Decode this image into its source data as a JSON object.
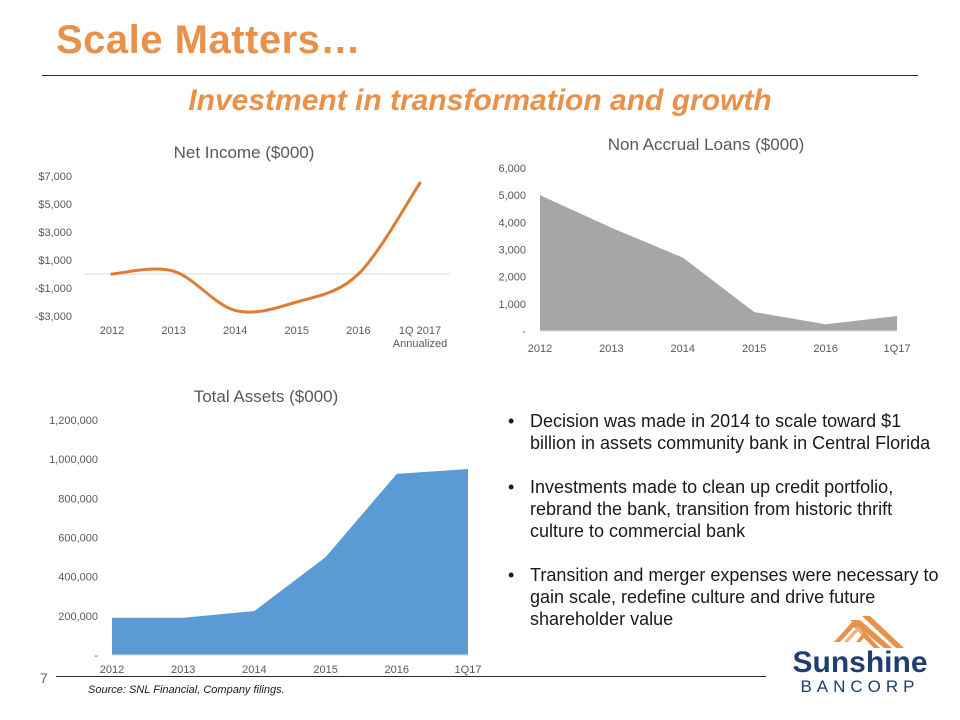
{
  "slide": {
    "title": "Scale Matters…",
    "subtitle": "Investment in transformation and growth",
    "page_number": "7",
    "source": "Source: SNL Financial, Company filings.",
    "bullets": [
      "Decision was made in 2014 to scale toward $1 billion in assets community bank in Central Florida",
      "Investments made to clean up credit portfolio, rebrand the bank, transition from historic thrift culture to commercial bank",
      "Transition and merger expenses were necessary to gain scale, redefine culture and drive future shareholder value"
    ],
    "bullet_glyph": "•",
    "logo": {
      "name_line1": "Sunshine",
      "name_line2": "BANCORP",
      "color": "#1f3d6e",
      "accent": "#e8914a"
    }
  },
  "chart_data": [
    {
      "type": "line",
      "title": "Net Income ($000)",
      "categories": [
        "2012",
        "2013",
        "2014",
        "2015",
        "2016",
        "1Q 2017"
      ],
      "category_sublabels": [
        "",
        "",
        "",
        "",
        "",
        "Annualized"
      ],
      "values": [
        0,
        200,
        -2600,
        -2000,
        0,
        6500
      ],
      "yticks": [
        -3000,
        -1000,
        1000,
        3000,
        5000,
        7000
      ],
      "ytick_labels": [
        "-$3,000",
        "-$1,000",
        "$1,000",
        "$3,000",
        "$5,000",
        "$7,000"
      ],
      "ylim": [
        -3000,
        7000
      ],
      "color": "#e07b32"
    },
    {
      "type": "area",
      "title": "Non Accrual Loans ($000)",
      "categories": [
        "2012",
        "2013",
        "2014",
        "2015",
        "2016",
        "1Q17"
      ],
      "values": [
        5000,
        3800,
        2700,
        700,
        250,
        550
      ],
      "yticks": [
        0,
        1000,
        2000,
        3000,
        4000,
        5000,
        6000
      ],
      "ytick_labels": [
        "-",
        "1,000",
        "2,000",
        "3,000",
        "4,000",
        "5,000",
        "6,000"
      ],
      "ylim": [
        0,
        6000
      ],
      "color": "#a6a6a6"
    },
    {
      "type": "area",
      "title": "Total Assets ($000)",
      "categories": [
        "2012",
        "2013",
        "2014",
        "2015",
        "2016",
        "1Q17"
      ],
      "values": [
        190000,
        190000,
        225000,
        500000,
        925000,
        950000
      ],
      "yticks": [
        0,
        200000,
        400000,
        600000,
        800000,
        1000000,
        1200000
      ],
      "ytick_labels": [
        "-",
        "200,000",
        "400,000",
        "600,000",
        "800,000",
        "1,000,000",
        "1,200,000"
      ],
      "ylim": [
        0,
        1200000
      ],
      "color": "#5b9bd5"
    }
  ]
}
